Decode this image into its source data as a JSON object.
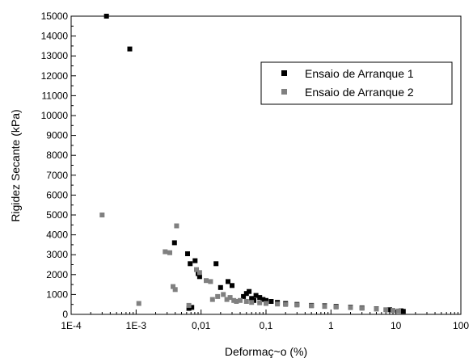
{
  "chart_data": {
    "type": "scatter",
    "title": "",
    "xlabel": "Deformaç~o (%)",
    "ylabel": "Rigidez Secante (kPa)",
    "x_scale": "log",
    "xlim": [
      0.0001,
      100
    ],
    "ylim": [
      0,
      15000
    ],
    "x_ticks": [
      {
        "value": 0.0001,
        "label": "1E-4"
      },
      {
        "value": 0.001,
        "label": "1E-3"
      },
      {
        "value": 0.01,
        "label": "0,01"
      },
      {
        "value": 0.1,
        "label": "0,1"
      },
      {
        "value": 1,
        "label": "1"
      },
      {
        "value": 10,
        "label": "10"
      },
      {
        "value": 100,
        "label": "100"
      }
    ],
    "y_ticks": [
      0,
      1000,
      2000,
      3000,
      4000,
      5000,
      6000,
      7000,
      8000,
      9000,
      10000,
      11000,
      12000,
      13000,
      14000,
      15000
    ],
    "grid": false,
    "legend_position": "top-right",
    "series": [
      {
        "name": "Ensaio de Arranque 1",
        "color": "#000000",
        "points": [
          [
            0.00035,
            15000
          ],
          [
            0.0008,
            13350
          ],
          [
            0.0039,
            3600
          ],
          [
            0.0062,
            3050
          ],
          [
            0.0068,
            2550
          ],
          [
            0.0081,
            2700
          ],
          [
            0.009,
            2050
          ],
          [
            0.0095,
            1900
          ],
          [
            0.017,
            2550
          ],
          [
            0.02,
            1350
          ],
          [
            0.026,
            1650
          ],
          [
            0.03,
            1450
          ],
          [
            0.0065,
            300
          ],
          [
            0.0072,
            350
          ],
          [
            0.045,
            900
          ],
          [
            0.05,
            1050
          ],
          [
            0.055,
            1150
          ],
          [
            0.06,
            800
          ],
          [
            0.065,
            700
          ],
          [
            0.07,
            950
          ],
          [
            0.08,
            850
          ],
          [
            0.09,
            750
          ],
          [
            0.1,
            700
          ],
          [
            0.12,
            650
          ],
          [
            0.15,
            600
          ],
          [
            0.2,
            550
          ],
          [
            0.3,
            500
          ],
          [
            0.5,
            450
          ],
          [
            0.8,
            430
          ],
          [
            1.2,
            400
          ],
          [
            2,
            360
          ],
          [
            3,
            330
          ],
          [
            5,
            280
          ],
          [
            8,
            230
          ],
          [
            12,
            180
          ],
          [
            13,
            150
          ]
        ]
      },
      {
        "name": "Ensaio de Arranque 2",
        "color": "#808080",
        "points": [
          [
            0.0003,
            5000
          ],
          [
            0.0011,
            550
          ],
          [
            0.0028,
            3150
          ],
          [
            0.0033,
            3100
          ],
          [
            0.0037,
            1400
          ],
          [
            0.004,
            1250
          ],
          [
            0.0042,
            4450
          ],
          [
            0.0065,
            450
          ],
          [
            0.0085,
            2250
          ],
          [
            0.0095,
            2100
          ],
          [
            0.012,
            1700
          ],
          [
            0.014,
            1650
          ],
          [
            0.015,
            750
          ],
          [
            0.018,
            900
          ],
          [
            0.022,
            1000
          ],
          [
            0.025,
            750
          ],
          [
            0.028,
            850
          ],
          [
            0.032,
            700
          ],
          [
            0.035,
            650
          ],
          [
            0.04,
            700
          ],
          [
            0.05,
            650
          ],
          [
            0.06,
            600
          ],
          [
            0.08,
            580
          ],
          [
            0.1,
            550
          ],
          [
            0.15,
            520
          ],
          [
            0.2,
            500
          ],
          [
            0.3,
            470
          ],
          [
            0.5,
            430
          ],
          [
            0.8,
            400
          ],
          [
            1.2,
            370
          ],
          [
            2,
            340
          ],
          [
            3,
            310
          ],
          [
            5,
            270
          ],
          [
            7,
            230
          ],
          [
            9,
            200
          ],
          [
            11,
            170
          ]
        ]
      }
    ]
  }
}
